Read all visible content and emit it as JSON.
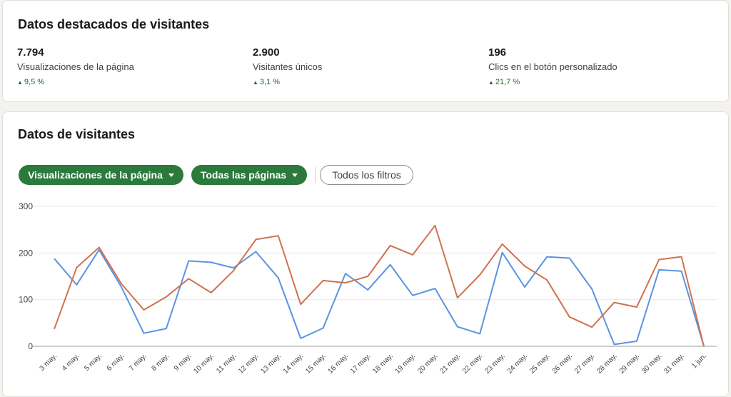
{
  "highlights": {
    "title": "Datos destacados de visitantes",
    "metrics": [
      {
        "value": "7.794",
        "label": "Visualizaciones de la página",
        "change": "9,5 %"
      },
      {
        "value": "2.900",
        "label": "Visitantes únicos",
        "change": "3,1 %"
      },
      {
        "value": "196",
        "label": "Clics en el botón personalizado",
        "change": "21,7 %"
      }
    ]
  },
  "visitors": {
    "title": "Datos de visitantes",
    "filters": {
      "metric_label": "Visualizaciones de la página",
      "pages_label": "Todas las páginas",
      "all_filters_label": "Todos los filtros"
    }
  },
  "colors": {
    "blue": "#5b93e0",
    "orange": "#d0714f",
    "green": "#2b7a3c"
  },
  "icons": {
    "caret": "chevron-down-icon",
    "change": "triangle-up-icon"
  },
  "chart_data": {
    "type": "line",
    "categories": [
      "3 may.",
      "4 may.",
      "5 may.",
      "6 may.",
      "7 may.",
      "8 may.",
      "9 may.",
      "10 may.",
      "11 may.",
      "12 may.",
      "13 may.",
      "14 may.",
      "15 may.",
      "16 may.",
      "17 may.",
      "18 may.",
      "19 may.",
      "20 may.",
      "21 may.",
      "22 may.",
      "23 may.",
      "24 may.",
      "25 may.",
      "26 may.",
      "27 may.",
      "28 may.",
      "29 may.",
      "30 may.",
      "31 may.",
      "1 jun."
    ],
    "series": [
      {
        "color": "#5b93e0",
        "values": [
          188,
          132,
          207,
          127,
          28,
          38,
          183,
          180,
          168,
          203,
          147,
          17,
          39,
          156,
          121,
          175,
          109,
          124,
          42,
          27,
          201,
          127,
          192,
          189,
          123,
          4,
          11,
          164,
          161,
          0
        ]
      },
      {
        "color": "#d0714f",
        "values": [
          37,
          169,
          212,
          134,
          78,
          106,
          145,
          115,
          162,
          229,
          237,
          90,
          141,
          136,
          150,
          216,
          196,
          259,
          104,
          153,
          219,
          172,
          142,
          63,
          41,
          94,
          84,
          186,
          192,
          0
        ]
      }
    ],
    "yticks": [
      0,
      100,
      200,
      300
    ],
    "ylim": [
      0,
      300
    ],
    "grid": true
  }
}
